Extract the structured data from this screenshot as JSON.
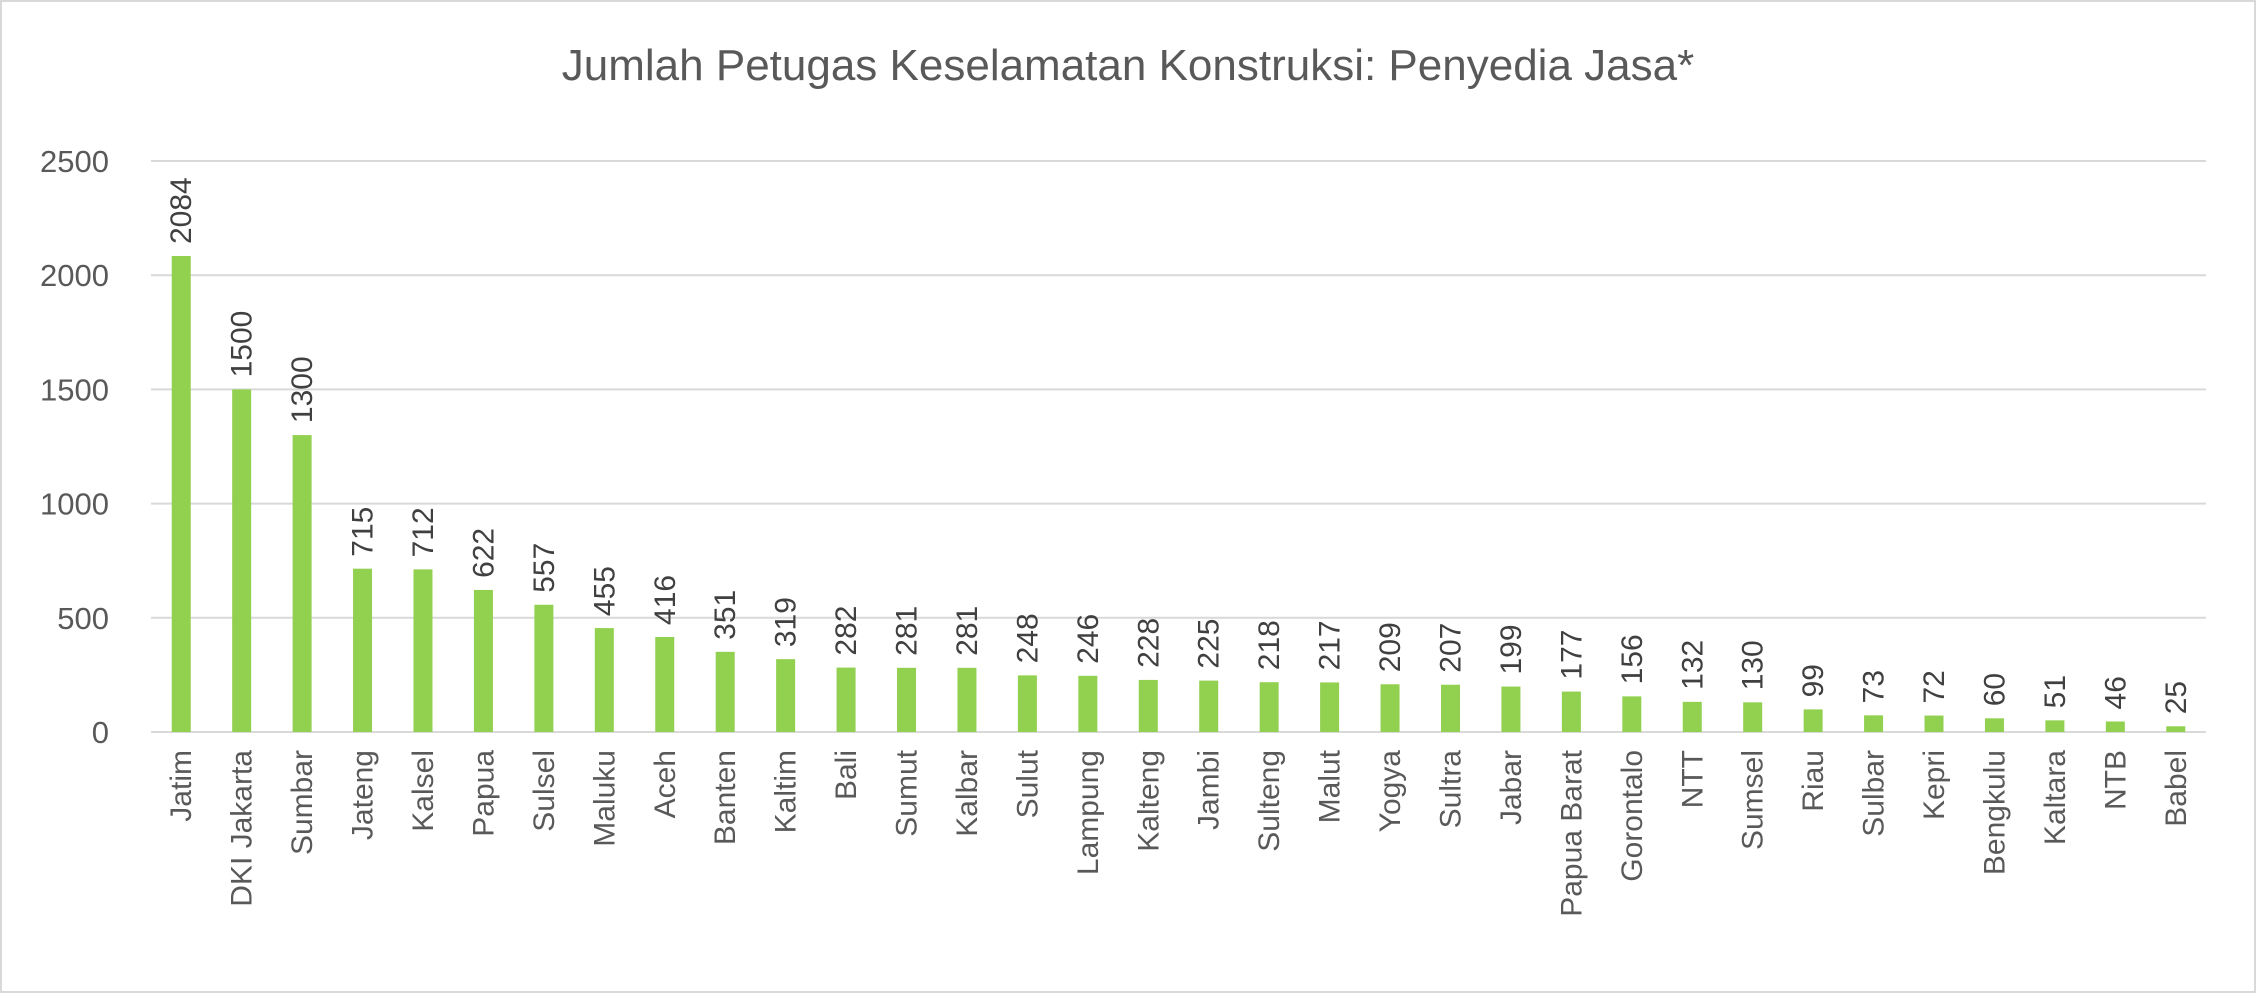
{
  "chart_data": {
    "type": "bar",
    "title": "Jumlah Petugas Keselamatan Konstruksi: Penyedia Jasa*",
    "xlabel": "",
    "ylabel": "",
    "ylim": [
      0,
      2500
    ],
    "yticks": [
      0,
      500,
      1000,
      1500,
      2000,
      2500
    ],
    "grid": true,
    "legend": "none",
    "bar_color": "#92D050",
    "categories": [
      "Jatim",
      "DKI Jakarta",
      "Sumbar",
      "Jateng",
      "Kalsel",
      "Papua",
      "Sulsel",
      "Maluku",
      "Aceh",
      "Banten",
      "Kaltim",
      "Bali",
      "Sumut",
      "Kalbar",
      "Sulut",
      "Lampung",
      "Kalteng",
      "Jambi",
      "Sulteng",
      "Malut",
      "Yogya",
      "Sultra",
      "Jabar",
      "Papua Barat",
      "Gorontalo",
      "NTT",
      "Sumsel",
      "Riau",
      "Sulbar",
      "Kepri",
      "Bengkulu",
      "Kaltara",
      "NTB",
      "Babel"
    ],
    "values": [
      2084,
      1500,
      1300,
      715,
      712,
      622,
      557,
      455,
      416,
      351,
      319,
      282,
      281,
      281,
      248,
      246,
      228,
      225,
      218,
      217,
      209,
      207,
      199,
      177,
      156,
      132,
      130,
      99,
      73,
      72,
      60,
      51,
      46,
      25
    ]
  }
}
